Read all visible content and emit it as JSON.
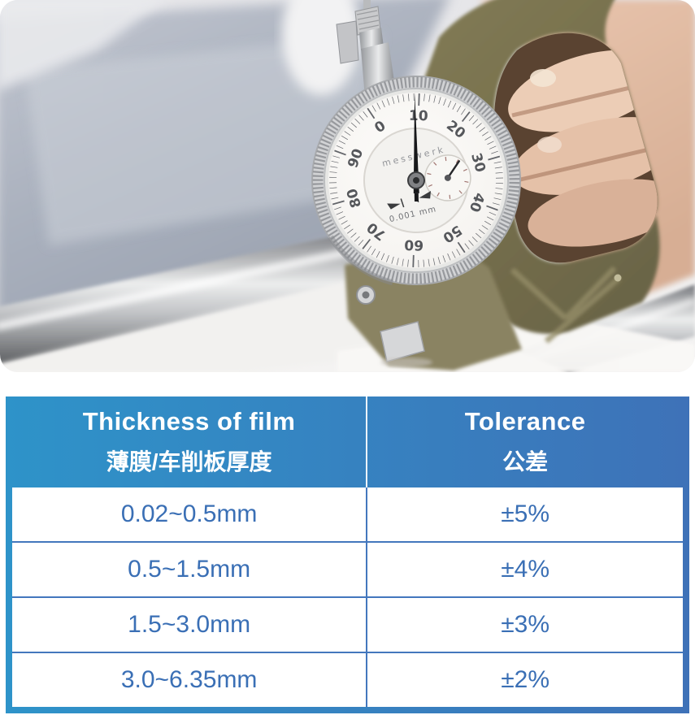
{
  "photo": {
    "description": "hand holding a dial thickness gauge measuring plastic film over a metal roller",
    "gauge": {
      "brand": "messwerk",
      "unit_label": "0.001 mm",
      "dial_numbers": [
        "0",
        "10",
        "20",
        "30",
        "40",
        "50",
        "60",
        "70",
        "80",
        "90"
      ],
      "pointer_value": 12
    },
    "colors": {
      "handle_olive": "#7d7652",
      "film_gray": "#a9b0bd",
      "roller_metal": "#d9dadc"
    }
  },
  "table": {
    "columns": [
      {
        "title_en": "Thickness of film",
        "title_cn": "薄膜/车削板厚度"
      },
      {
        "title_en": "Tolerance",
        "title_cn": "公差"
      }
    ],
    "rows": [
      {
        "thickness": "0.02~0.5mm",
        "tolerance": "±5%"
      },
      {
        "thickness": "0.5~1.5mm",
        "tolerance": "±4%"
      },
      {
        "thickness": "1.5~3.0mm",
        "tolerance": "±3%"
      },
      {
        "thickness": "3.0~6.35mm",
        "tolerance": "±2%"
      }
    ],
    "colors": {
      "header_gradient_start": "#2E93C9",
      "header_gradient_end": "#3E72B8",
      "cell_text": "#3A6FB5",
      "divider": "#4377BD"
    }
  }
}
